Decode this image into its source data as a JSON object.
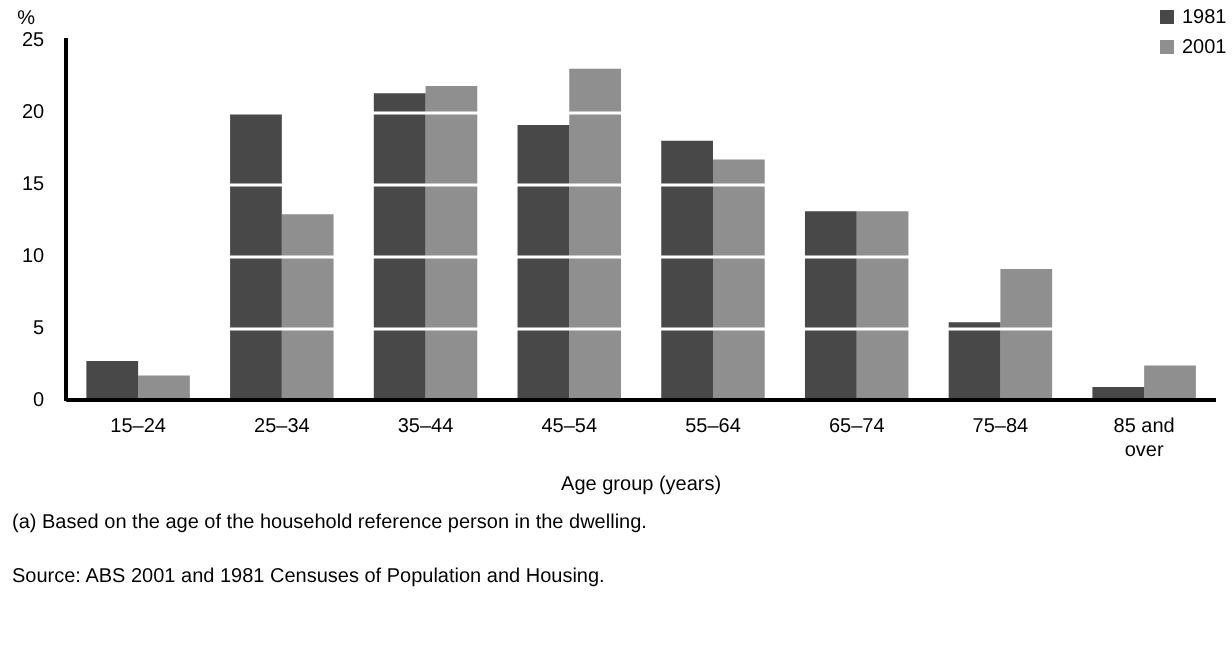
{
  "chart_data": {
    "type": "bar",
    "ylabel": "%",
    "xlabel": "Age group (years)",
    "categories": [
      "15–24",
      "25–34",
      "35–44",
      "45–54",
      "55–64",
      "65–74",
      "75–84",
      "85 and over"
    ],
    "series": [
      {
        "name": "1981",
        "color": "#484848",
        "values": [
          2.7,
          19.9,
          21.3,
          19.1,
          18.0,
          13.1,
          5.4,
          0.9
        ]
      },
      {
        "name": "2001",
        "color": "#8f8f8f",
        "values": [
          1.7,
          12.9,
          21.8,
          23.0,
          16.7,
          13.1,
          9.1,
          2.4
        ]
      }
    ],
    "ylim": [
      0,
      25
    ],
    "yticks": [
      0,
      5,
      10,
      15,
      20,
      25
    ],
    "grid": "y",
    "legend": "top right",
    "annotations": [
      "(a) Based on the age of the household reference person in the dwelling.",
      "Source: ABS 2001 and 1981 Censuses of Population and Housing."
    ]
  }
}
